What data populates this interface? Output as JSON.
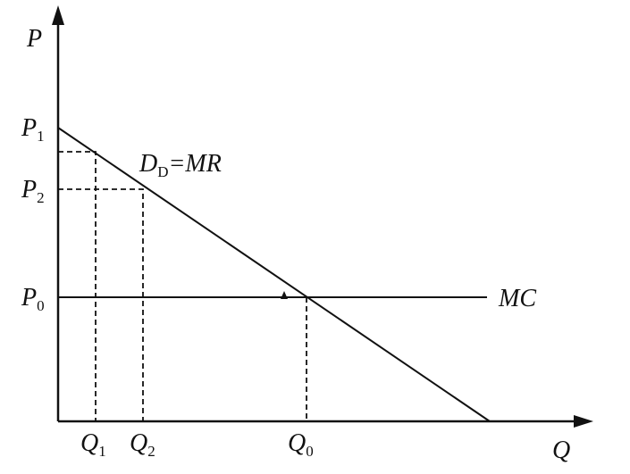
{
  "axes": {
    "y_label": "P",
    "x_label": "Q"
  },
  "price_labels": [
    {
      "base": "P",
      "sub": "1"
    },
    {
      "base": "P",
      "sub": "2"
    },
    {
      "base": "P",
      "sub": "0"
    }
  ],
  "quantity_labels": [
    {
      "base": "Q",
      "sub": "1"
    },
    {
      "base": "Q",
      "sub": "2"
    },
    {
      "base": "Q",
      "sub": "0"
    }
  ],
  "demand_label": {
    "base": "D",
    "sub": "D",
    "rest": "=MR"
  },
  "cost_label": "MC"
}
